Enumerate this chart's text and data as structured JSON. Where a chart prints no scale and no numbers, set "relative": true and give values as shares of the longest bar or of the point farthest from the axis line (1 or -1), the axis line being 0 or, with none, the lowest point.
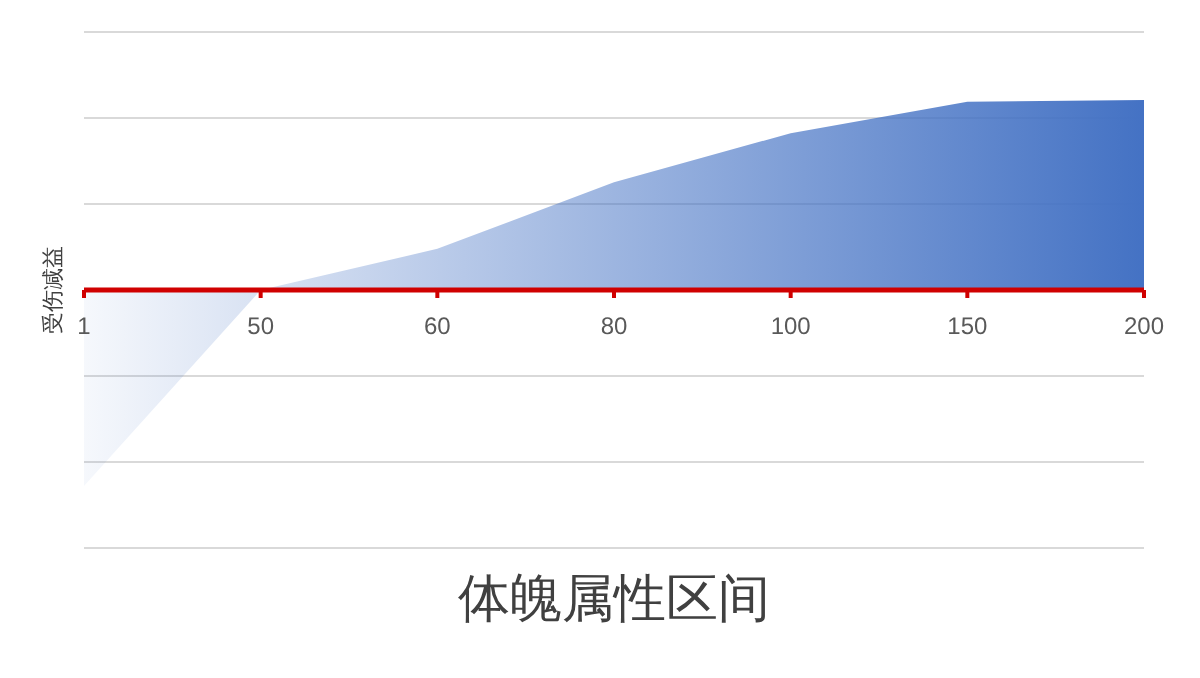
{
  "chart_data": {
    "type": "area",
    "relative": true,
    "xlabel": "体魄属性区间",
    "ylabel": "受伤减益",
    "categories": [
      "1",
      "50",
      "60",
      "80",
      "100",
      "150",
      "200"
    ],
    "series": [
      {
        "color": "#4472c4",
        "values": [
          -1,
          0,
          0.21,
          0.55,
          0.8,
          0.96,
          0.97
        ]
      }
    ],
    "grid": "y"
  }
}
